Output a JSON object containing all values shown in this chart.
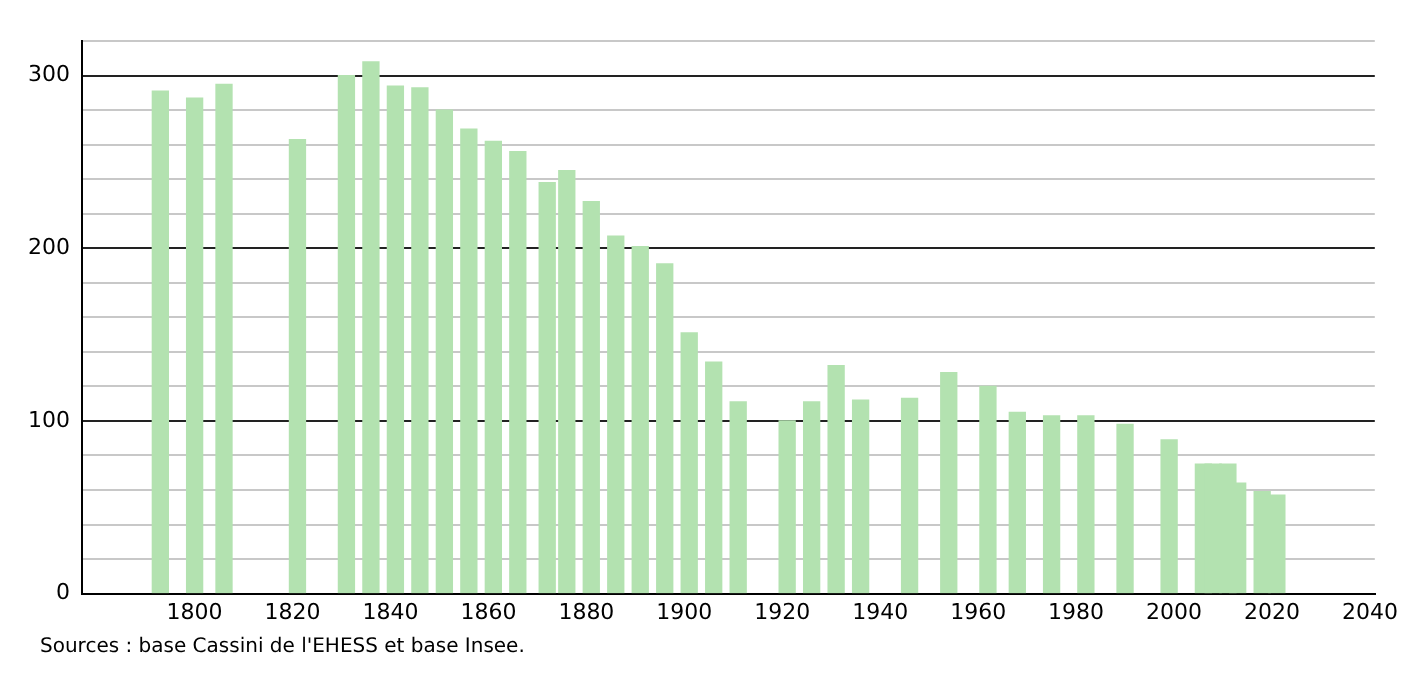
{
  "chart_data": {
    "type": "bar",
    "x": [
      1793,
      1800,
      1806,
      1821,
      1831,
      1836,
      1841,
      1846,
      1851,
      1856,
      1861,
      1866,
      1872,
      1876,
      1881,
      1886,
      1891,
      1896,
      1901,
      1906,
      1911,
      1921,
      1926,
      1931,
      1936,
      1946,
      1954,
      1962,
      1968,
      1975,
      1982,
      1990,
      1999,
      2006,
      2008,
      2011,
      2013,
      2018,
      2021
    ],
    "values": [
      291,
      287,
      295,
      263,
      300,
      308,
      294,
      293,
      280,
      269,
      262,
      256,
      238,
      245,
      227,
      207,
      201,
      191,
      151,
      134,
      111,
      100,
      111,
      132,
      112,
      113,
      128,
      120,
      105,
      103,
      103,
      98,
      89,
      75,
      75,
      75,
      64,
      59,
      57
    ],
    "color": "#b3e2b0",
    "xlim": [
      1777,
      2041
    ],
    "xticks": [
      1800,
      1820,
      1840,
      1860,
      1880,
      1900,
      1920,
      1940,
      1960,
      1980,
      2000,
      2020,
      2040
    ],
    "ylim": [
      0,
      320
    ],
    "yticks": [
      0,
      {
        "value": 20,
        "label": null
      },
      {
        "value": 40,
        "label": null
      },
      {
        "value": 60,
        "label": null
      },
      {
        "value": 80,
        "label": null
      },
      100,
      {
        "value": 120,
        "label": null
      },
      {
        "value": 140,
        "label": null
      },
      {
        "value": 160,
        "label": null
      },
      {
        "value": 180,
        "label": null
      },
      200,
      {
        "value": 220,
        "label": null
      },
      {
        "value": 240,
        "label": null
      },
      {
        "value": 260,
        "label": null
      },
      {
        "value": 280,
        "label": null
      },
      300,
      {
        "value": 320,
        "label": null
      }
    ],
    "grid": "y",
    "annotations": [
      "Sources : base Cassini de l'EHESS et base Insee."
    ]
  }
}
